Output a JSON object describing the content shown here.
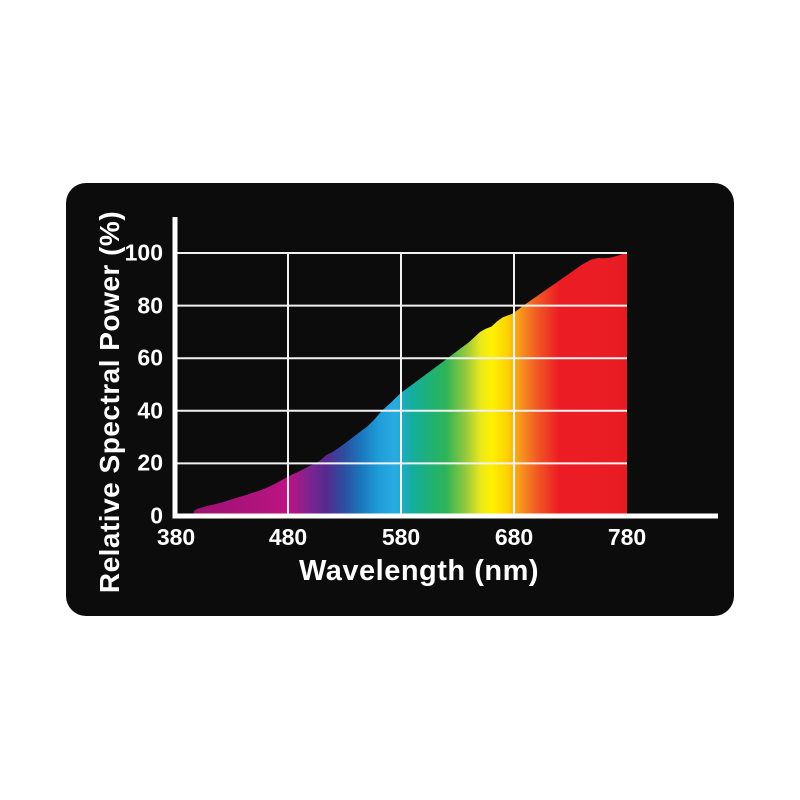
{
  "chart_data": {
    "type": "area",
    "title": "",
    "xlabel": "Wavelength (nm)",
    "ylabel": "Relative Spectral Power (%)",
    "xlim": [
      380,
      780
    ],
    "ylim": [
      0,
      100
    ],
    "xticks": [
      380,
      480,
      580,
      680,
      780
    ],
    "yticks": [
      0,
      20,
      40,
      60,
      80,
      100
    ],
    "xtick_labels": [
      "380",
      "480",
      "580",
      "680",
      "780"
    ],
    "ytick_labels": [
      "0",
      "20",
      "40",
      "60",
      "80",
      "100"
    ],
    "grid": true,
    "legend": "none",
    "series_name": "relative spectral power vs wavelength",
    "points": [
      [
        380,
        0
      ],
      [
        396,
        0
      ],
      [
        397,
        2
      ],
      [
        400,
        2.8
      ],
      [
        405,
        3.4
      ],
      [
        410,
        4
      ],
      [
        415,
        4.5
      ],
      [
        420,
        5
      ],
      [
        425,
        5.6
      ],
      [
        430,
        6.3
      ],
      [
        435,
        7
      ],
      [
        440,
        7.6
      ],
      [
        445,
        8.3
      ],
      [
        450,
        9
      ],
      [
        455,
        9.7
      ],
      [
        460,
        10.5
      ],
      [
        465,
        11.5
      ],
      [
        470,
        12.6
      ],
      [
        475,
        13.8
      ],
      [
        480,
        15
      ],
      [
        485,
        16
      ],
      [
        490,
        17
      ],
      [
        495,
        18.1
      ],
      [
        500,
        19.2
      ],
      [
        508,
        20.9
      ],
      [
        514,
        23.2
      ],
      [
        520,
        24.5
      ],
      [
        530,
        27.5
      ],
      [
        540,
        30.8
      ],
      [
        550,
        34
      ],
      [
        556,
        36.5
      ],
      [
        563,
        40
      ],
      [
        570,
        42.7
      ],
      [
        580,
        46.8
      ],
      [
        590,
        50
      ],
      [
        600,
        53.2
      ],
      [
        610,
        56.4
      ],
      [
        620,
        59.6
      ],
      [
        630,
        62.8
      ],
      [
        640,
        66
      ],
      [
        650,
        70
      ],
      [
        655,
        71.2
      ],
      [
        660,
        72
      ],
      [
        665,
        74
      ],
      [
        670,
        75.5
      ],
      [
        674,
        76.2
      ],
      [
        678,
        76.8
      ],
      [
        682,
        78
      ],
      [
        690,
        80.5
      ],
      [
        700,
        83.5
      ],
      [
        710,
        86.5
      ],
      [
        720,
        89.5
      ],
      [
        730,
        92.5
      ],
      [
        740,
        95.5
      ],
      [
        748,
        97.4
      ],
      [
        754,
        98.1
      ],
      [
        760,
        98
      ],
      [
        766,
        98.3
      ],
      [
        772,
        99
      ],
      [
        776,
        99.6
      ],
      [
        780,
        100
      ]
    ],
    "gradient_stops": [
      [
        0.0,
        "#96126d"
      ],
      [
        0.2,
        "#b3137e"
      ],
      [
        0.25,
        "#bf1284"
      ],
      [
        0.3,
        "#7a2490"
      ],
      [
        0.335,
        "#562a8e"
      ],
      [
        0.375,
        "#2c4fa2"
      ],
      [
        0.41,
        "#1b75bc"
      ],
      [
        0.45,
        "#1e9cd8"
      ],
      [
        0.485,
        "#29abe2"
      ],
      [
        0.525,
        "#14ad9e"
      ],
      [
        0.565,
        "#1fb176"
      ],
      [
        0.6,
        "#2eb457"
      ],
      [
        0.645,
        "#9aca3c"
      ],
      [
        0.675,
        "#e8e71e"
      ],
      [
        0.7,
        "#fff100"
      ],
      [
        0.735,
        "#fdd204"
      ],
      [
        0.765,
        "#f7941d"
      ],
      [
        0.8,
        "#f15a24"
      ],
      [
        0.85,
        "#ed1c24"
      ],
      [
        1.0,
        "#e81b23"
      ]
    ],
    "colors": {
      "card_bg": "#0d0c0d",
      "text": "#ffffff",
      "axis": "#ffffff",
      "grid": "#f2f2f2"
    }
  }
}
